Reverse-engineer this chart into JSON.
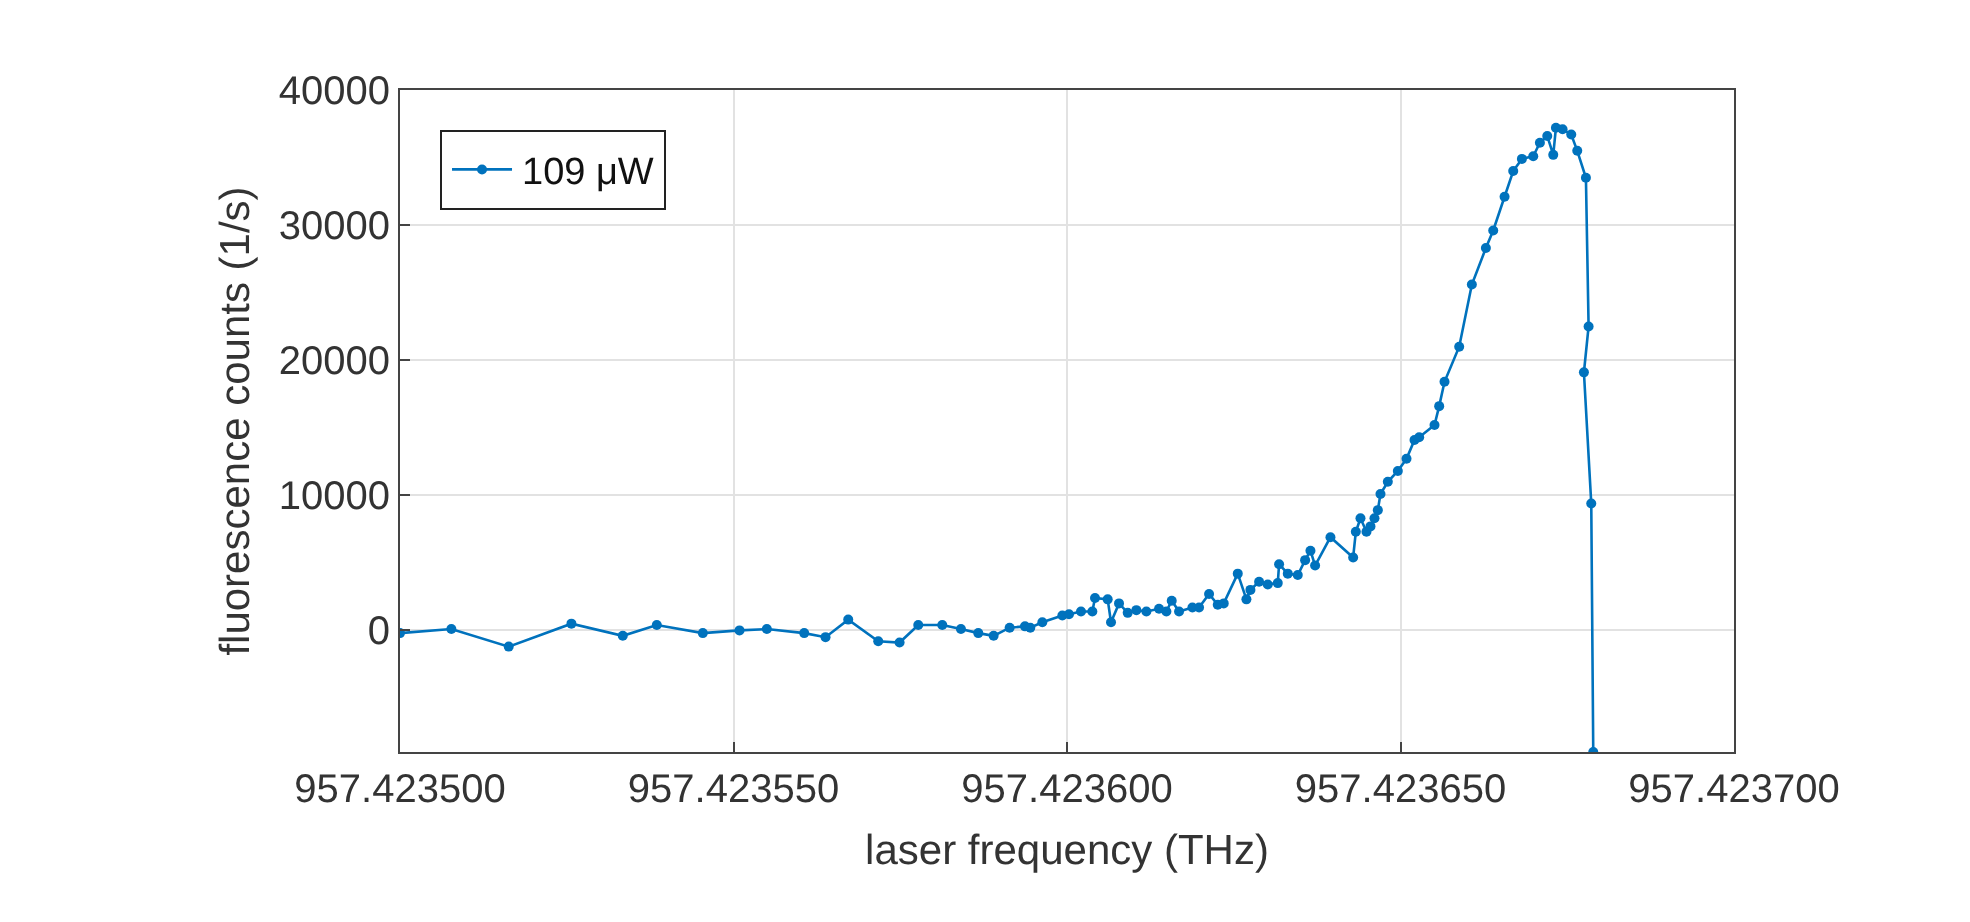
{
  "chart_data": {
    "type": "line",
    "xlabel": "laser frequency (THz)",
    "ylabel": "fluorescence counts (1/s)",
    "xlim": [
      957.4235,
      957.4237
    ],
    "xticks": [
      {
        "value": 957.4235,
        "label": "957.423500"
      },
      {
        "value": 957.42355,
        "label": "957.423550"
      },
      {
        "value": 957.4236,
        "label": "957.423600"
      },
      {
        "value": 957.42365,
        "label": "957.423650"
      },
      {
        "value": 957.4237,
        "label": "957.423700"
      }
    ],
    "ylim": [
      -9000,
      40000
    ],
    "yticks": [
      0,
      10000,
      20000,
      30000,
      40000
    ],
    "grid": true,
    "legend": "top left",
    "marker": "circle",
    "line_style": "solid",
    "series": [
      {
        "name": "109 μW",
        "color": "#0072bd",
        "x": [
          957.4235,
          957.4235077,
          957.4235163,
          957.4235257,
          957.4235334,
          957.4235385,
          957.4235454,
          957.4235509,
          957.423555,
          957.4235606,
          957.4235638,
          957.4235672,
          957.4235717,
          957.4235749,
          957.4235777,
          957.4235813,
          957.4235841,
          957.4235867,
          957.423589,
          957.4235914,
          957.4235937,
          957.4235945,
          957.4235963,
          957.4235993,
          957.4236003,
          957.4236021,
          957.4236038,
          957.4236042,
          957.4236061,
          957.4236066,
          957.4236078,
          957.4236091,
          957.4236104,
          957.4236119,
          957.4236138,
          957.4236149,
          957.4236157,
          957.4236168,
          957.4236188,
          957.4236198,
          957.4236213,
          957.4236226,
          957.4236235,
          957.4236256,
          957.4236269,
          957.4236275,
          957.4236288,
          957.4236301,
          957.4236316,
          957.4236318,
          957.4236331,
          957.4236346,
          957.4236357,
          957.4236365,
          957.4236372,
          957.4236395,
          957.4236429,
          957.4236433,
          957.423644,
          957.4236449,
          957.4236455,
          957.4236461,
          957.4236466,
          957.423647,
          957.4236481,
          957.4236496,
          957.4236509,
          957.4236521,
          957.4236528,
          957.4236551,
          957.4236558,
          957.4236566,
          957.4236588,
          957.4236607,
          957.4236628,
          957.4236639,
          957.4236656,
          957.4236669,
          957.4236682,
          957.4236699,
          957.4236709,
          957.423672,
          957.4236729,
          957.4236733,
          957.4236743,
          957.4236756,
          957.4236765,
          957.4236778,
          957.4236782,
          957.4236775,
          957.4236786,
          957.4236789
        ],
        "values": [
          -200,
          100,
          -1200,
          500,
          -400,
          400,
          -200,
          0,
          100,
          -200,
          -500,
          800,
          -800,
          -900,
          400,
          400,
          100,
          -200,
          -400,
          200,
          300,
          200,
          600,
          1100,
          1200,
          1400,
          1400,
          2400,
          2300,
          600,
          2000,
          1300,
          1500,
          1400,
          1600,
          1400,
          2200,
          1400,
          1700,
          1700,
          2700,
          1900,
          2000,
          4200,
          2300,
          3000,
          3600,
          3400,
          3500,
          4900,
          4200,
          4100,
          5200,
          5900,
          4800,
          6900,
          5400,
          7300,
          8300,
          7300,
          7700,
          8300,
          8900,
          10100,
          11000,
          11800,
          12700,
          14100,
          14300,
          15200,
          16600,
          18400,
          21000,
          25600,
          28300,
          29600,
          32100,
          34000,
          34900,
          35100,
          36100,
          36600,
          35200,
          37200,
          37100,
          36700,
          35500,
          33500,
          22500,
          19100,
          9400,
          -9000
        ]
      }
    ]
  }
}
